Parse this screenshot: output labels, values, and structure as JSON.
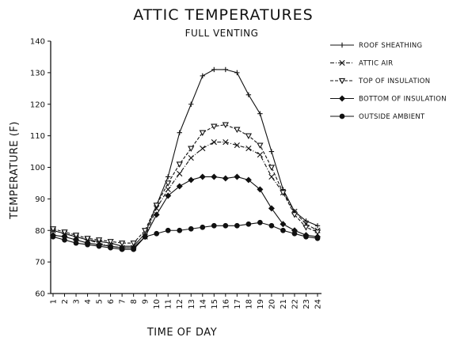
{
  "chart_data": {
    "type": "line",
    "title": "ATTIC TEMPERATURES",
    "subtitle": "FULL VENTING",
    "xlabel": "TIME OF DAY",
    "ylabel": "TEMPERATURE (F)",
    "x": [
      1,
      2,
      3,
      4,
      5,
      6,
      7,
      8,
      9,
      10,
      11,
      12,
      13,
      14,
      15,
      16,
      17,
      18,
      19,
      20,
      21,
      22,
      23,
      24
    ],
    "ylim": [
      60,
      140
    ],
    "yticks": [
      60,
      70,
      80,
      90,
      100,
      110,
      120,
      130,
      140
    ],
    "grid": false,
    "legend_position": "right",
    "series": [
      {
        "name": "ROOF SHEATHING",
        "marker": "plus",
        "dash": "solid",
        "values": [
          80,
          79,
          78,
          77,
          76.5,
          76,
          75,
          75,
          79,
          88,
          97,
          111,
          120,
          129,
          131,
          131,
          130,
          123,
          117,
          105,
          93,
          86,
          83,
          81.5
        ]
      },
      {
        "name": "ATTIC AIR",
        "marker": "x",
        "dash": "dashdot",
        "values": [
          80,
          79,
          78,
          77,
          76,
          75,
          74.5,
          74.5,
          78,
          87,
          93,
          98,
          103,
          106,
          108,
          108,
          107,
          106,
          104,
          97,
          92,
          86,
          82,
          80
        ]
      },
      {
        "name": "TOP OF INSULATION",
        "marker": "triangle-down",
        "dash": "dash",
        "values": [
          80.5,
          79.5,
          78.5,
          77.5,
          77,
          76.5,
          76,
          76,
          80,
          88,
          95,
          101,
          106,
          111,
          113,
          113.5,
          112,
          110,
          107,
          100,
          92,
          85,
          81,
          79.5
        ]
      },
      {
        "name": "BOTTOM OF INSULATION",
        "marker": "diamond",
        "dash": "solid",
        "values": [
          78.5,
          78,
          77,
          76,
          75.5,
          75,
          74.5,
          74.5,
          78,
          85,
          91,
          94,
          96,
          97,
          97,
          96.5,
          97,
          96,
          93,
          87,
          82,
          80,
          78.5,
          78
        ]
      },
      {
        "name": "OUTSIDE AMBIENT",
        "marker": "dot",
        "dash": "solid",
        "values": [
          78,
          77,
          76,
          75.5,
          75,
          74.5,
          74,
          74,
          78,
          79,
          80,
          80,
          80.5,
          81,
          81.5,
          81.5,
          81.5,
          82,
          82.5,
          81.5,
          80,
          79,
          78,
          77.5
        ]
      }
    ]
  }
}
